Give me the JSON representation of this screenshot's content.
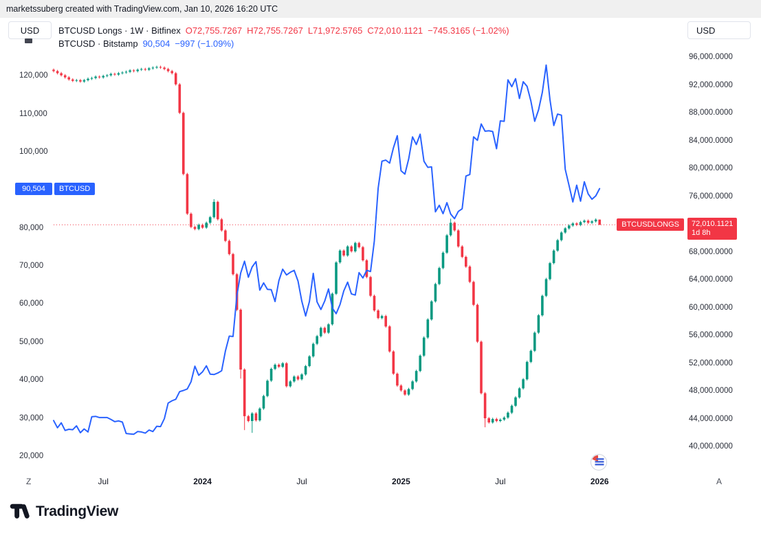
{
  "attribution": "marketssuberg created with TradingView.com, Jan 10, 2026 16:20 UTC",
  "left_axis_button": "USD",
  "right_axis_button": "USD",
  "legend": {
    "row1": {
      "title": "BTCUSD Longs · 1W · Bitfinex",
      "o": "O72,755.7267",
      "h": "H72,755.7267",
      "l": "L71,972.5765",
      "c": "C72,010.1121",
      "change": "−745.3165 (−1.02%)"
    },
    "row2": {
      "title": "BTCUSD · Bitstamp",
      "last": "90,504",
      "change": "−997 (−1.09%)"
    }
  },
  "badges": {
    "btcusd_price": "90,504",
    "btcusd_label": "BTCUSD",
    "longs_label": "BTCUSDLONGS",
    "longs_price": "72,010.1121",
    "longs_countdown": "1d 8h"
  },
  "corner_left": "Z",
  "corner_right": "A",
  "footer_logo": "TradingView",
  "colors": {
    "up": "#089981",
    "down": "#f23645",
    "line": "#2962ff",
    "badge_blue": "#2962ff",
    "badge_red": "#f23645",
    "text": "#131722"
  },
  "chart_data": {
    "type": "mixed",
    "timeframe": "1W",
    "grid": false,
    "x_ticks": [
      {
        "label": "Jul",
        "week": 13,
        "year": false
      },
      {
        "label": "2024",
        "week": 39,
        "year": true
      },
      {
        "label": "Jul",
        "week": 65,
        "year": false
      },
      {
        "label": "2025",
        "week": 91,
        "year": true
      },
      {
        "label": "Jul",
        "week": 117,
        "year": false
      },
      {
        "label": "2026",
        "week": 143,
        "year": true
      }
    ],
    "left_axis": {
      "range": [
        15100,
        128900
      ],
      "badge_value": 90504,
      "ticks": [
        {
          "value": 120000,
          "label": "120,000"
        },
        {
          "value": 110000,
          "label": "110,000"
        },
        {
          "value": 100000,
          "label": "100,000"
        },
        {
          "value": 80000,
          "label": "80,000"
        },
        {
          "value": 70000,
          "label": "70,000"
        },
        {
          "value": 60000,
          "label": "60,000"
        },
        {
          "value": 50000,
          "label": "50,000"
        },
        {
          "value": 40000,
          "label": "40,000"
        },
        {
          "value": 30000,
          "label": "30,000"
        },
        {
          "value": 20000,
          "label": "20,000"
        }
      ]
    },
    "right_axis": {
      "range": [
        36000,
        98200
      ],
      "badge_value": 72010.1121,
      "ticks": [
        {
          "value": 96000,
          "label": "96,000.0000"
        },
        {
          "value": 92000,
          "label": "92,000.0000"
        },
        {
          "value": 88000,
          "label": "88,000.0000"
        },
        {
          "value": 84000,
          "label": "84,000.0000"
        },
        {
          "value": 80000,
          "label": "80,000.0000"
        },
        {
          "value": 76000,
          "label": "76,000.0000"
        },
        {
          "value": 68000,
          "label": "68,000.0000"
        },
        {
          "value": 64000,
          "label": "64,000.0000"
        },
        {
          "value": 60000,
          "label": "60,000.0000"
        },
        {
          "value": 56000,
          "label": "56,000.0000"
        },
        {
          "value": 52000,
          "label": "52,000.0000"
        },
        {
          "value": 48000,
          "label": "48,000.0000"
        },
        {
          "value": 44000,
          "label": "44,000.0000"
        },
        {
          "value": 40000,
          "label": "40,000.0000"
        }
      ]
    },
    "series": [
      {
        "name": "BTCUSD Longs · 1W · Bitfinex",
        "type": "candlestick",
        "axis": "right",
        "first_open": 94300,
        "ohlc_last": {
          "open": 72755.7267,
          "high": 72755.7267,
          "low": 71972.5765,
          "close": 72010.1121
        },
        "closes": [
          94100,
          93800,
          93500,
          93200,
          92900,
          92700,
          92800,
          92600,
          92800,
          93000,
          93100,
          93300,
          93200,
          93400,
          93500,
          93700,
          93600,
          93800,
          93900,
          94000,
          94200,
          94100,
          94300,
          94400,
          94300,
          94500,
          94600,
          94700,
          94600,
          94400,
          94100,
          93800,
          92200,
          88100,
          79300,
          73600,
          71700,
          71400,
          72000,
          71600,
          72300,
          73100,
          75300,
          72800,
          71200,
          69700,
          67800,
          64900,
          59800,
          51200,
          44500,
          43800,
          44900,
          43900,
          45600,
          47400,
          49600,
          51300,
          51900,
          51600,
          52100,
          48800,
          49500,
          50200,
          49800,
          50500,
          51700,
          53100,
          54900,
          56000,
          57200,
          56500,
          57700,
          62100,
          66600,
          68300,
          67600,
          68900,
          68200,
          69400,
          68800,
          66900,
          64500,
          61800,
          59700,
          58600,
          58900,
          57400,
          53800,
          50600,
          48900,
          48200,
          47600,
          48400,
          49500,
          51000,
          53200,
          55800,
          58400,
          61000,
          63500,
          65800,
          68000,
          70500,
          72300,
          71200,
          68900,
          67400,
          66000,
          63800,
          60500,
          55200,
          47800,
          44200,
          43600,
          44100,
          43800,
          44000,
          44300,
          45000,
          46000,
          47200,
          48500,
          49800,
          52300,
          53900,
          56500,
          59000,
          61800,
          64200,
          66500,
          68300,
          69800,
          70900,
          71500,
          71900,
          72200,
          72000,
          72400,
          72600,
          72300,
          72500,
          72755.7267,
          72010.1121
        ],
        "wick_overrides": {
          "42": {
            "high": 75700
          },
          "49": {
            "low": 49900
          },
          "50": {
            "low": 42500
          },
          "52": {
            "low": 42100
          },
          "104": {
            "high": 72900
          },
          "113": {
            "low": 42900
          },
          "143": {
            "high": 72755.7267,
            "low": 71972.5765
          }
        }
      },
      {
        "name": "BTCUSD · Bitstamp",
        "type": "line",
        "axis": "left",
        "closes": [
          29500,
          27600,
          28900,
          26900,
          27200,
          27100,
          28100,
          26300,
          27300,
          26500,
          30500,
          30600,
          30300,
          30300,
          30300,
          29800,
          29200,
          29400,
          29100,
          26100,
          26000,
          25900,
          26600,
          26500,
          26200,
          27000,
          26600,
          28000,
          27900,
          30000,
          34100,
          34700,
          35100,
          37100,
          37400,
          37800,
          39700,
          43800,
          41400,
          42300,
          43900,
          41700,
          41600,
          42000,
          42600,
          47800,
          51700,
          51600,
          62400,
          68300,
          71400,
          67200,
          69900,
          71300,
          63800,
          65700,
          64000,
          63900,
          60800,
          66300,
          69300,
          67800,
          68500,
          69000,
          66200,
          60900,
          57000,
          60800,
          68200,
          60700,
          58700,
          60900,
          64100,
          59100,
          57600,
          60000,
          63600,
          65900,
          62800,
          62500,
          68400,
          67000,
          69000,
          68700,
          76700,
          90600,
          97700,
          98000,
          97200,
          101200,
          104400,
          95200,
          94300,
          98300,
          104100,
          102100,
          104800,
          97700,
          96100,
          96200,
          84400,
          86100,
          83900,
          86800,
          83800,
          82600,
          84500,
          85200,
          93800,
          94200,
          104100,
          103200,
          107500,
          105600,
          105700,
          105500,
          101000,
          108300,
          108200,
          119100,
          117300,
          119400,
          114200,
          118600,
          117400,
          113500,
          108200,
          111200,
          115800,
          123000,
          113900,
          107100,
          110100,
          109800,
          95600,
          91300,
          87000,
          91400,
          87200,
          92300,
          89100,
          87700,
          88600,
          90504
        ]
      }
    ]
  }
}
